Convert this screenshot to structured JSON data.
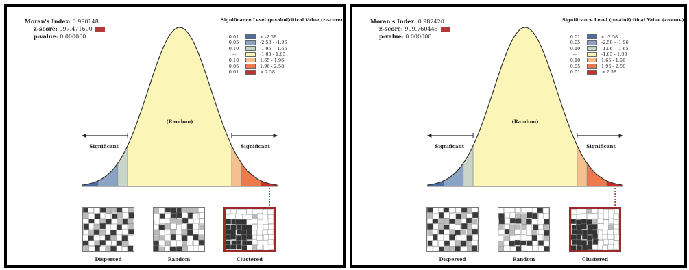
{
  "panels": [
    {
      "morans_index_label": "Moran's Index:",
      "morans_index_value": "0.990148",
      "z_score_label": "z-score:",
      "z_score_value": "997.471600",
      "p_value_label": "p-value:",
      "p_value_value": "0.000000"
    },
    {
      "morans_index_label": "Moran's Index:",
      "morans_index_value": "0.982420",
      "z_score_label": "z-score:",
      "z_score_value": "999.760445",
      "p_value_label": "p-value:",
      "p_value_value": "0.000000"
    }
  ],
  "legend": {
    "significance_header": "Significance Level (p-value)",
    "critical_header": "Critical Value (z-score)",
    "rows": [
      {
        "p": "0.01",
        "z": "< -2.58",
        "color": "#4a6fa5"
      },
      {
        "p": "0.05",
        "z": "-2.58 - -1.96",
        "color": "#8aa3c4"
      },
      {
        "p": "0.10",
        "z": "-1.96 - -1.65",
        "color": "#c7d6c8"
      },
      {
        "p": "---",
        "z": "-1.65 - 1.65",
        "color": "#fbf6b8"
      },
      {
        "p": "0.10",
        "z": "1.65 - 1.96",
        "color": "#f4c08e"
      },
      {
        "p": "0.05",
        "z": "1.96 - 2.58",
        "color": "#ec7a4c"
      },
      {
        "p": "0.01",
        "z": "> 2.58",
        "color": "#c9302c"
      }
    ]
  },
  "curve_labels": {
    "left_significant": "Significant",
    "random": "(Random)",
    "right_significant": "Significant"
  },
  "maps": {
    "dispersed": "Dispersed",
    "random": "Random",
    "clustered": "Clustered"
  },
  "colors": {
    "curve_fill": "#fbf6b8",
    "clustered_border": "#9a2b2b",
    "zscore_marker": "#b33a3a"
  }
}
